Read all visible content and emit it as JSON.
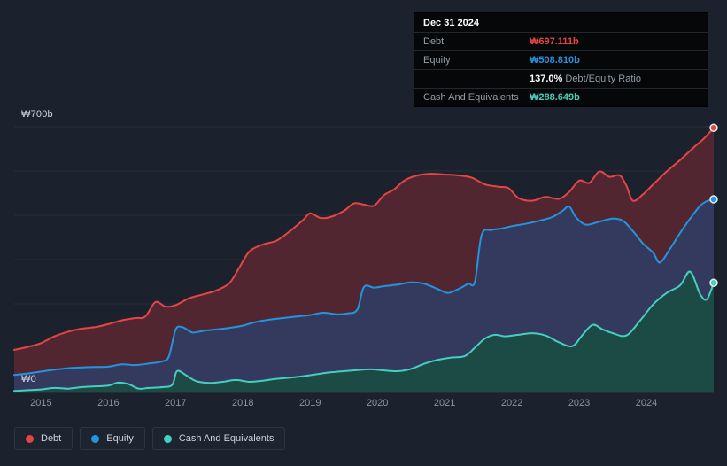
{
  "page": {
    "background": "#1b222d"
  },
  "tooltip": {
    "date": "Dec 31 2024",
    "debt_label": "Debt",
    "debt_value": "₩697.111b",
    "equity_label": "Equity",
    "equity_value": "₩508.810b",
    "ratio_value": "137.0%",
    "ratio_label": "Debt/Equity Ratio",
    "cash_label": "Cash And Equivalents",
    "cash_value": "₩288.649b"
  },
  "axes": {
    "y_top_label": "₩700b",
    "y_bottom_label": "₩0",
    "x_ticks": [
      "2015",
      "2016",
      "2017",
      "2018",
      "2019",
      "2020",
      "2021",
      "2022",
      "2023",
      "2024"
    ]
  },
  "legend": {
    "debt": "Debt",
    "equity": "Equity",
    "cash": "Cash And Equivalents"
  },
  "chart_data": {
    "type": "area",
    "y_unit": "₩ billions",
    "x_range": [
      2014.6,
      2025.0
    ],
    "y_range": [
      0,
      700
    ],
    "grid": {
      "h_lines": 7,
      "legend_position": "bottom-left"
    },
    "end_values": {
      "debt": 697.111,
      "equity": 508.81,
      "cash": 288.649,
      "debt_equity_ratio_pct": 137.0
    },
    "series": [
      {
        "key": "debt",
        "name": "Debt",
        "color": "#e64545",
        "fill": "#512631",
        "points": [
          [
            2014.6,
            112
          ],
          [
            2014.8,
            120
          ],
          [
            2015,
            130
          ],
          [
            2015.2,
            148
          ],
          [
            2015.4,
            160
          ],
          [
            2015.6,
            168
          ],
          [
            2015.8,
            172
          ],
          [
            2016,
            180
          ],
          [
            2016.2,
            190
          ],
          [
            2016.4,
            196
          ],
          [
            2016.55,
            200
          ],
          [
            2016.7,
            238
          ],
          [
            2016.85,
            226
          ],
          [
            2017,
            230
          ],
          [
            2017.2,
            248
          ],
          [
            2017.4,
            258
          ],
          [
            2017.6,
            268
          ],
          [
            2017.8,
            288
          ],
          [
            2017.95,
            330
          ],
          [
            2018.1,
            372
          ],
          [
            2018.3,
            390
          ],
          [
            2018.5,
            400
          ],
          [
            2018.7,
            425
          ],
          [
            2018.9,
            455
          ],
          [
            2019,
            472
          ],
          [
            2019.15,
            460
          ],
          [
            2019.3,
            462
          ],
          [
            2019.5,
            478
          ],
          [
            2019.65,
            498
          ],
          [
            2019.8,
            495
          ],
          [
            2019.95,
            492
          ],
          [
            2020.1,
            520
          ],
          [
            2020.25,
            535
          ],
          [
            2020.4,
            558
          ],
          [
            2020.6,
            572
          ],
          [
            2020.8,
            576
          ],
          [
            2021,
            574
          ],
          [
            2021.2,
            572
          ],
          [
            2021.4,
            566
          ],
          [
            2021.6,
            548
          ],
          [
            2021.8,
            542
          ],
          [
            2021.95,
            538
          ],
          [
            2022.1,
            512
          ],
          [
            2022.3,
            505
          ],
          [
            2022.5,
            515
          ],
          [
            2022.7,
            510
          ],
          [
            2022.85,
            528
          ],
          [
            2023,
            558
          ],
          [
            2023.15,
            552
          ],
          [
            2023.3,
            582
          ],
          [
            2023.45,
            568
          ],
          [
            2023.6,
            572
          ],
          [
            2023.7,
            545
          ],
          [
            2023.8,
            505
          ],
          [
            2023.95,
            522
          ],
          [
            2024.1,
            548
          ],
          [
            2024.3,
            582
          ],
          [
            2024.5,
            612
          ],
          [
            2024.7,
            645
          ],
          [
            2024.85,
            668
          ],
          [
            2025,
            697.111
          ]
        ]
      },
      {
        "key": "equity",
        "name": "Equity",
        "color": "#2394df",
        "fill": "#343a5e",
        "points": [
          [
            2014.6,
            46
          ],
          [
            2014.8,
            50
          ],
          [
            2015,
            55
          ],
          [
            2015.2,
            60
          ],
          [
            2015.4,
            64
          ],
          [
            2015.6,
            66
          ],
          [
            2015.8,
            67
          ],
          [
            2016,
            68
          ],
          [
            2016.2,
            74
          ],
          [
            2016.4,
            72
          ],
          [
            2016.6,
            76
          ],
          [
            2016.8,
            82
          ],
          [
            2016.9,
            95
          ],
          [
            2017,
            165
          ],
          [
            2017.1,
            172
          ],
          [
            2017.25,
            158
          ],
          [
            2017.4,
            162
          ],
          [
            2017.6,
            166
          ],
          [
            2017.8,
            170
          ],
          [
            2018,
            176
          ],
          [
            2018.2,
            186
          ],
          [
            2018.4,
            192
          ],
          [
            2018.6,
            196
          ],
          [
            2018.8,
            200
          ],
          [
            2019,
            204
          ],
          [
            2019.2,
            210
          ],
          [
            2019.4,
            206
          ],
          [
            2019.55,
            208
          ],
          [
            2019.7,
            218
          ],
          [
            2019.8,
            278
          ],
          [
            2019.95,
            276
          ],
          [
            2020.1,
            280
          ],
          [
            2020.3,
            284
          ],
          [
            2020.5,
            290
          ],
          [
            2020.7,
            286
          ],
          [
            2020.9,
            272
          ],
          [
            2021.05,
            262
          ],
          [
            2021.2,
            272
          ],
          [
            2021.35,
            286
          ],
          [
            2021.45,
            292
          ],
          [
            2021.55,
            415
          ],
          [
            2021.7,
            428
          ],
          [
            2021.85,
            432
          ],
          [
            2022,
            438
          ],
          [
            2022.2,
            444
          ],
          [
            2022.4,
            452
          ],
          [
            2022.6,
            462
          ],
          [
            2022.75,
            478
          ],
          [
            2022.85,
            490
          ],
          [
            2022.95,
            462
          ],
          [
            2023.1,
            442
          ],
          [
            2023.3,
            450
          ],
          [
            2023.5,
            458
          ],
          [
            2023.65,
            452
          ],
          [
            2023.8,
            425
          ],
          [
            2023.95,
            392
          ],
          [
            2024.1,
            368
          ],
          [
            2024.2,
            342
          ],
          [
            2024.35,
            378
          ],
          [
            2024.5,
            420
          ],
          [
            2024.65,
            458
          ],
          [
            2024.8,
            492
          ],
          [
            2024.9,
            504
          ],
          [
            2025,
            508.81
          ]
        ]
      },
      {
        "key": "cash",
        "name": "Cash And Equivalents",
        "color": "#45cfc0",
        "fill": "#1c4a45",
        "points": [
          [
            2014.6,
            4
          ],
          [
            2014.8,
            6
          ],
          [
            2015,
            8
          ],
          [
            2015.2,
            12
          ],
          [
            2015.4,
            10
          ],
          [
            2015.6,
            14
          ],
          [
            2015.8,
            16
          ],
          [
            2016,
            18
          ],
          [
            2016.15,
            26
          ],
          [
            2016.3,
            22
          ],
          [
            2016.45,
            10
          ],
          [
            2016.6,
            12
          ],
          [
            2016.8,
            14
          ],
          [
            2016.95,
            20
          ],
          [
            2017.02,
            56
          ],
          [
            2017.15,
            46
          ],
          [
            2017.3,
            30
          ],
          [
            2017.5,
            25
          ],
          [
            2017.7,
            28
          ],
          [
            2017.9,
            33
          ],
          [
            2018.1,
            28
          ],
          [
            2018.3,
            31
          ],
          [
            2018.5,
            36
          ],
          [
            2018.7,
            39
          ],
          [
            2018.9,
            43
          ],
          [
            2019.1,
            48
          ],
          [
            2019.3,
            53
          ],
          [
            2019.5,
            56
          ],
          [
            2019.7,
            59
          ],
          [
            2019.9,
            61
          ],
          [
            2020.1,
            58
          ],
          [
            2020.3,
            56
          ],
          [
            2020.5,
            62
          ],
          [
            2020.7,
            76
          ],
          [
            2020.9,
            86
          ],
          [
            2021.1,
            92
          ],
          [
            2021.3,
            96
          ],
          [
            2021.45,
            118
          ],
          [
            2021.6,
            142
          ],
          [
            2021.75,
            152
          ],
          [
            2021.9,
            148
          ],
          [
            2022.1,
            152
          ],
          [
            2022.3,
            156
          ],
          [
            2022.5,
            150
          ],
          [
            2022.7,
            132
          ],
          [
            2022.9,
            122
          ],
          [
            2023.05,
            152
          ],
          [
            2023.2,
            178
          ],
          [
            2023.35,
            166
          ],
          [
            2023.5,
            156
          ],
          [
            2023.7,
            150
          ],
          [
            2023.9,
            188
          ],
          [
            2024.1,
            232
          ],
          [
            2024.3,
            262
          ],
          [
            2024.5,
            282
          ],
          [
            2024.65,
            318
          ],
          [
            2024.8,
            258
          ],
          [
            2024.9,
            246
          ],
          [
            2025,
            288.649
          ]
        ]
      }
    ]
  }
}
